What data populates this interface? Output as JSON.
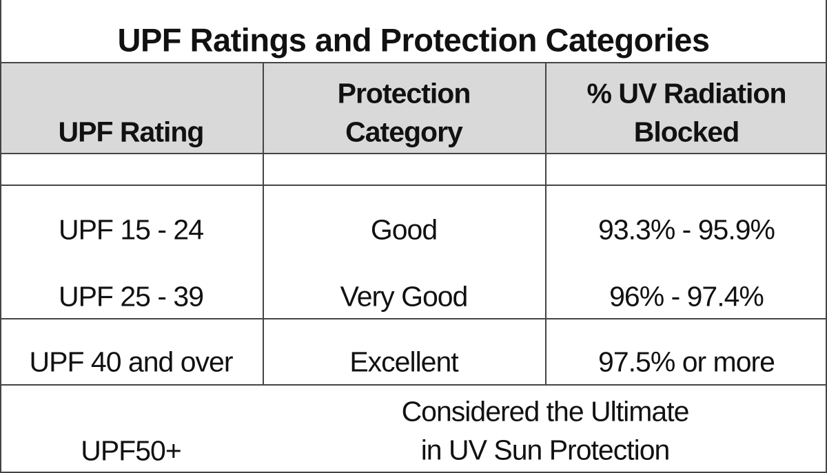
{
  "title": "UPF Ratings and Protection Categories",
  "table": {
    "header": [
      [
        "UPF Rating"
      ],
      [
        "Protection",
        "Category"
      ],
      [
        "% UV Radiation",
        "Blocked"
      ]
    ],
    "rows": [
      [
        "UPF 15 - 24",
        "Good",
        "93.3% - 95.9%"
      ],
      [
        "UPF 25 - 39",
        "Very Good",
        "96% - 97.4%"
      ],
      [
        "UPF 40 and over",
        "Excellent",
        "97.5% or more"
      ]
    ],
    "last_row": {
      "rating": "UPF50+",
      "note": [
        "Considered the Ultimate",
        "in UV Sun Protection"
      ]
    }
  }
}
